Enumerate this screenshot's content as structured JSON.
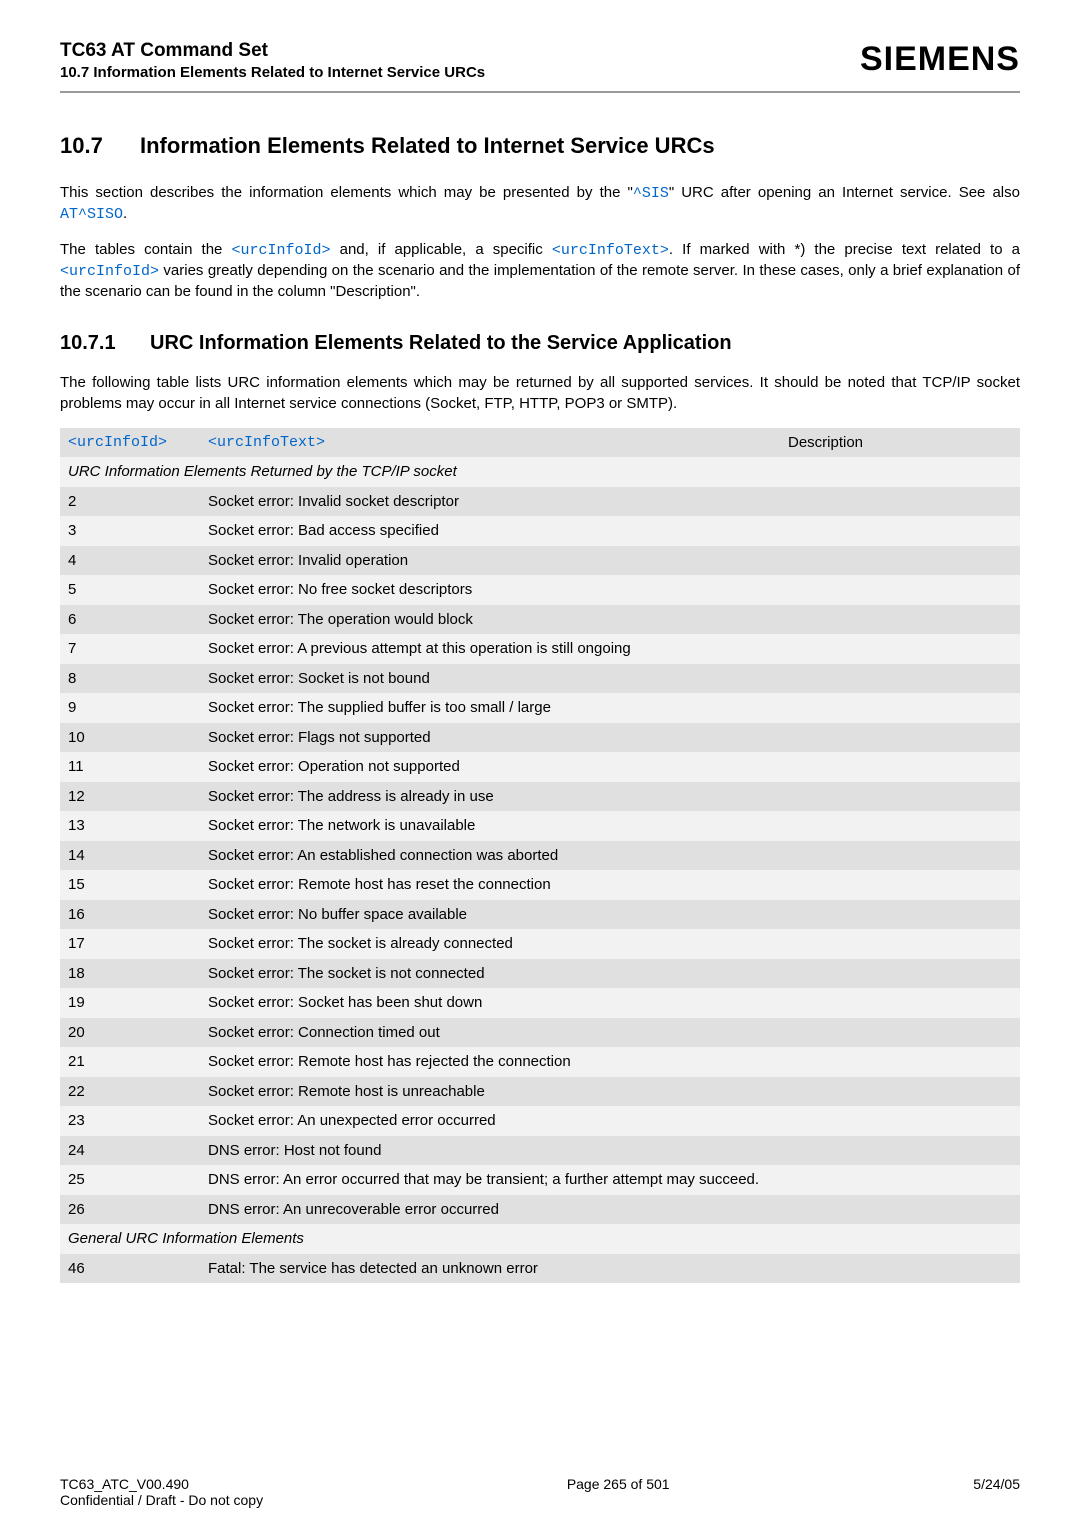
{
  "header": {
    "title": "TC63 AT Command Set",
    "subtitle": "10.7 Information Elements Related to Internet Service URCs",
    "logo": "SIEMENS"
  },
  "section": {
    "num": "10.7",
    "title": "Information Elements Related to Internet Service URCs",
    "para1_a": "This section describes the information elements which may be presented by the \"",
    "para1_link1": "^SIS",
    "para1_b": "\" URC after opening an Internet service. See also ",
    "para1_link2": "AT^SISO",
    "para1_c": ".",
    "para2_a": "The tables contain the ",
    "para2_link1": "<urcInfoId>",
    "para2_b": " and, if applicable, a specific ",
    "para2_link2": "<urcInfoText>",
    "para2_c": ". If marked with *) the precise text related to a ",
    "para2_link3": "<urcInfoId>",
    "para2_d": " varies greatly depending on the scenario and the implementation of the remote server. In these cases, only a brief explanation of the scenario can be found in the column \"Description\"."
  },
  "subsection": {
    "num": "10.7.1",
    "title": "URC Information Elements Related to the Service Application",
    "para": "The following table lists URC information elements which may be returned by all supported services. It should be noted that TCP/IP socket problems may occur in all Internet service connections (Socket, FTP, HTTP, POP3 or SMTP)."
  },
  "table": {
    "col_id": "<urcInfoId>",
    "col_text": "<urcInfoText>",
    "col_desc": "Description",
    "subhead1": "URC Information Elements Returned by the TCP/IP socket",
    "subhead2": "General URC Information Elements",
    "rows": [
      {
        "id": "2",
        "text": "Socket error: Invalid socket descriptor"
      },
      {
        "id": "3",
        "text": "Socket error: Bad access specified"
      },
      {
        "id": "4",
        "text": "Socket error: Invalid operation"
      },
      {
        "id": "5",
        "text": "Socket error: No free socket descriptors"
      },
      {
        "id": "6",
        "text": "Socket error: The operation would block"
      },
      {
        "id": "7",
        "text": "Socket error: A previous attempt at this operation is still ongoing"
      },
      {
        "id": "8",
        "text": "Socket error: Socket is not bound"
      },
      {
        "id": "9",
        "text": "Socket error: The supplied buffer is too small / large"
      },
      {
        "id": "10",
        "text": "Socket error: Flags not supported"
      },
      {
        "id": "11",
        "text": "Socket error: Operation not supported"
      },
      {
        "id": "12",
        "text": "Socket error: The address is already in use"
      },
      {
        "id": "13",
        "text": "Socket error: The network is unavailable"
      },
      {
        "id": "14",
        "text": "Socket error: An established connection was aborted"
      },
      {
        "id": "15",
        "text": "Socket error: Remote host has reset the connection"
      },
      {
        "id": "16",
        "text": "Socket error: No buffer space available"
      },
      {
        "id": "17",
        "text": "Socket error: The socket is already connected"
      },
      {
        "id": "18",
        "text": "Socket error: The socket is not connected"
      },
      {
        "id": "19",
        "text": "Socket error: Socket has been shut down"
      },
      {
        "id": "20",
        "text": "Socket error: Connection timed out"
      },
      {
        "id": "21",
        "text": "Socket error: Remote host has rejected the connection"
      },
      {
        "id": "22",
        "text": "Socket error: Remote host is unreachable"
      },
      {
        "id": "23",
        "text": "Socket error: An unexpected error occurred"
      },
      {
        "id": "24",
        "text": "DNS error: Host not found"
      },
      {
        "id": "25",
        "text": "DNS error: An error occurred that may be transient; a further attempt may succeed."
      },
      {
        "id": "26",
        "text": "DNS error: An unrecoverable error occurred"
      }
    ],
    "rows2": [
      {
        "id": "46",
        "text": "Fatal: The service has detected an unknown error"
      }
    ]
  },
  "footer": {
    "left1": "TC63_ATC_V00.490",
    "left2": "Confidential / Draft - Do not copy",
    "center": "Page 265 of 501",
    "right": "5/24/05"
  },
  "colors": {
    "link": "#0066cc",
    "row_light": "#f2f2f2",
    "row_dark": "#e0e0e0",
    "hr": "#999999"
  }
}
